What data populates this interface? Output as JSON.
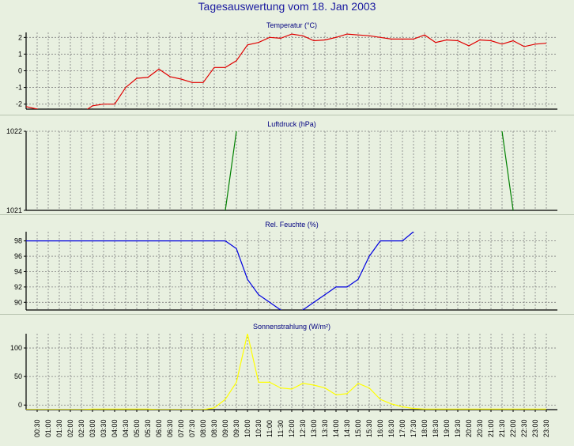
{
  "title": "Tagesauswertung vom 18. Jan 2003",
  "chart_data": [
    {
      "type": "line",
      "title": "Temperatur (°C)",
      "color": "#e00000",
      "ylim": [
        -2.3,
        2.3
      ],
      "yticks": [
        2,
        1,
        0,
        -1,
        -2
      ],
      "x_times": [
        "00:00",
        "00:30",
        "01:00",
        "01:30",
        "02:00",
        "02:30",
        "03:00",
        "03:30",
        "04:00",
        "04:30",
        "05:00",
        "05:30",
        "06:00",
        "06:30",
        "07:00",
        "07:30",
        "08:00",
        "08:30",
        "09:00",
        "09:30",
        "10:00",
        "10:30",
        "11:00",
        "11:30",
        "12:00",
        "12:30",
        "13:00",
        "13:30",
        "14:00",
        "14:30",
        "15:00",
        "15:30",
        "16:00",
        "16:30",
        "17:00",
        "17:30",
        "18:00",
        "18:30",
        "19:00",
        "19:30",
        "20:00",
        "20:30",
        "21:00",
        "21:30",
        "22:00",
        "22:30",
        "23:00",
        "23:30"
      ],
      "values": [
        -2.15,
        -2.3,
        -2.6,
        -2.4,
        -2.45,
        -2.55,
        -2.1,
        -2.0,
        -2.0,
        -1.0,
        -0.45,
        -0.4,
        0.1,
        -0.35,
        -0.5,
        -0.7,
        -0.7,
        0.2,
        0.2,
        0.6,
        1.55,
        1.7,
        2.0,
        1.95,
        2.2,
        2.1,
        1.8,
        1.85,
        2.0,
        2.2,
        2.15,
        2.1,
        2.0,
        1.9,
        1.9,
        1.9,
        2.15,
        1.7,
        1.85,
        1.8,
        1.5,
        1.85,
        1.8,
        1.6,
        1.8,
        1.45,
        1.6,
        1.65
      ]
    },
    {
      "type": "line",
      "title": "Luftdruck (hPa)",
      "color": "#008000",
      "ylim": [
        1021,
        1022
      ],
      "yticks": [
        1022,
        1021
      ],
      "segments": [
        {
          "x": [
            "09:00",
            "09:30"
          ],
          "y": [
            1021,
            1022
          ]
        },
        {
          "x": [
            "21:30",
            "22:00"
          ],
          "y": [
            1022,
            1021
          ]
        }
      ]
    },
    {
      "type": "line",
      "title": "Rel. Feuchte (%)",
      "color": "#0000e0",
      "ylim": [
        89,
        99.2
      ],
      "yticks": [
        98,
        96,
        94,
        92,
        90
      ],
      "x_times": [
        "00:00",
        "00:30",
        "01:00",
        "01:30",
        "02:00",
        "02:30",
        "03:00",
        "03:30",
        "04:00",
        "04:30",
        "05:00",
        "05:30",
        "06:00",
        "06:30",
        "07:00",
        "07:30",
        "08:00",
        "08:30",
        "09:00",
        "09:30",
        "10:00",
        "10:30",
        "11:00",
        "11:30",
        "12:00",
        "12:30",
        "13:00",
        "13:30",
        "14:00",
        "14:30",
        "15:00",
        "15:30",
        "16:00",
        "16:30",
        "17:00",
        "17:30"
      ],
      "values": [
        98,
        98,
        98,
        98,
        98,
        98,
        98,
        98,
        98,
        98,
        98,
        98,
        98,
        98,
        98,
        98,
        98,
        98,
        98,
        97,
        93,
        91,
        90,
        89,
        88,
        89,
        90,
        91,
        92,
        92,
        93,
        96,
        98,
        98,
        98,
        99.2
      ]
    },
    {
      "type": "line",
      "title": "Sonnenstrahlung (W/m²)",
      "color": "#ffff00",
      "ylim": [
        -8,
        125
      ],
      "yticks": [
        100,
        50,
        0
      ],
      "x_times": [
        "00:00",
        "00:30",
        "01:00",
        "01:30",
        "02:00",
        "02:30",
        "03:00",
        "03:30",
        "04:00",
        "04:30",
        "05:00",
        "05:30",
        "06:00",
        "06:30",
        "07:00",
        "07:30",
        "08:00",
        "08:30",
        "09:00",
        "09:30",
        "10:00",
        "10:30",
        "11:00",
        "11:30",
        "12:00",
        "12:30",
        "13:00",
        "13:30",
        "14:00",
        "14:30",
        "15:00",
        "15:30",
        "16:00",
        "16:30",
        "17:00",
        "17:30",
        "18:00",
        "18:30",
        "19:00",
        "19:30",
        "20:00",
        "20:30",
        "21:00",
        "21:30",
        "22:00",
        "22:30",
        "23:00",
        "23:30"
      ],
      "values": [
        -8,
        -8,
        -8,
        -8,
        -8,
        -8,
        -7,
        -7,
        -7,
        -7,
        -7,
        -7,
        -8,
        -8,
        -8,
        -8,
        -8,
        -5,
        10,
        40,
        125,
        40,
        40,
        30,
        28,
        38,
        35,
        30,
        18,
        20,
        38,
        30,
        10,
        2,
        -3,
        -6,
        -7,
        -7,
        -7,
        -7,
        -7,
        -7,
        -7,
        -7,
        -7,
        -7,
        -7,
        -7
      ]
    }
  ],
  "x_tick_labels": [
    "00:30",
    "01:00",
    "01:30",
    "02:00",
    "02:30",
    "03:00",
    "03:30",
    "04:00",
    "04:30",
    "05:00",
    "05:30",
    "06:00",
    "06:30",
    "07:00",
    "07:30",
    "08:00",
    "08:30",
    "09:00",
    "09:30",
    "10:00",
    "10:30",
    "11:00",
    "11:30",
    "12:00",
    "12:30",
    "13:00",
    "13:30",
    "14:00",
    "14:30",
    "15:00",
    "15:30",
    "16:00",
    "16:30",
    "17:00",
    "17:30",
    "18:00",
    "18:30",
    "19:00",
    "19:30",
    "20:00",
    "20:30",
    "21:00",
    "21:30",
    "22:00",
    "22:30",
    "23:00",
    "23:30"
  ]
}
